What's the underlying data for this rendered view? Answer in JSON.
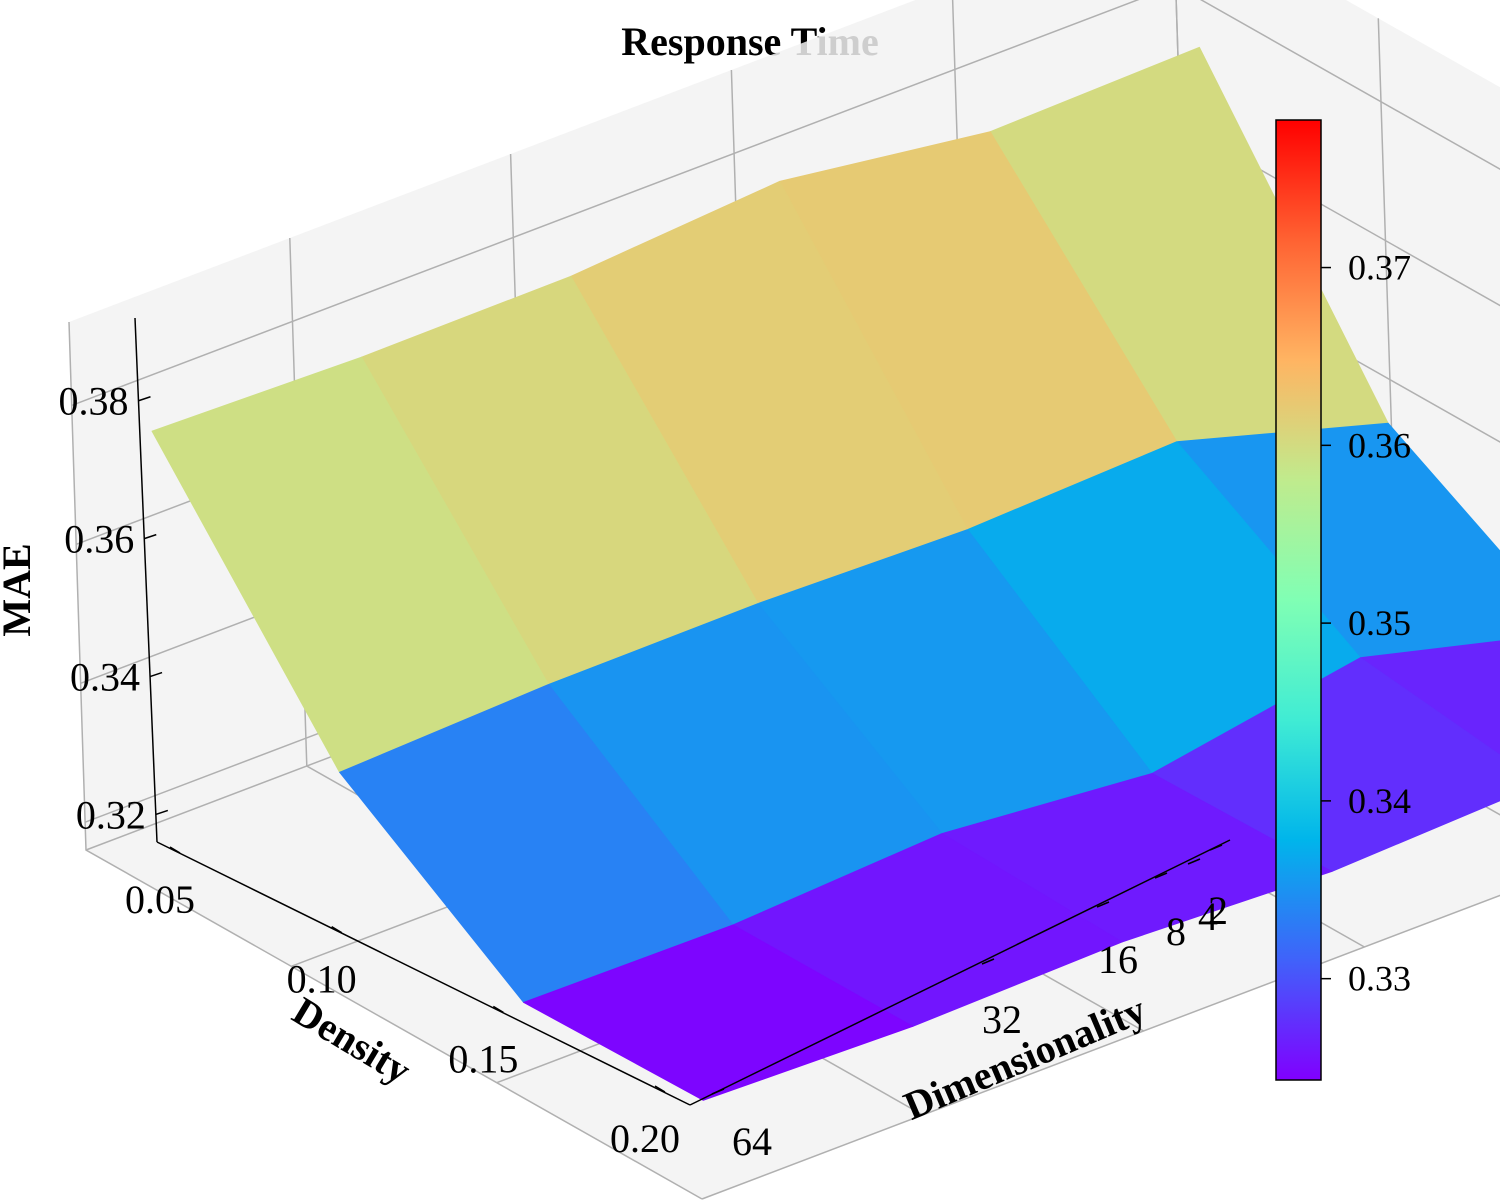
{
  "chart_data": {
    "type": "surface3d",
    "title": "Response Time",
    "xlabel": "Density",
    "ylabel": "Dimensionality",
    "zlabel": "MAE",
    "colormap": "rainbow",
    "density": [
      0.05,
      0.1,
      0.15,
      0.2
    ],
    "density_tick_labels": [
      "0.05",
      "0.10",
      "0.15",
      "0.20"
    ],
    "dimensionality": [
      2,
      4,
      8,
      16,
      32,
      64
    ],
    "dimensionality_tick_labels": [
      "2",
      "4",
      "8",
      "16",
      "32",
      "64"
    ],
    "mae": [
      [
        0.378,
        0.339,
        0.324,
        0.324
      ],
      [
        0.3765,
        0.347,
        0.331,
        0.328
      ],
      [
        0.38,
        0.345,
        0.325,
        0.326
      ],
      [
        0.377,
        0.345,
        0.327,
        0.3265
      ],
      [
        0.376,
        0.344,
        0.3245,
        0.325
      ],
      [
        0.376,
        0.342,
        0.324,
        0.325
      ]
    ],
    "mae_note": "rows follow dimensionality [2,4,8,16,32,64]; columns follow density [0.05,0.10,0.15,0.20]",
    "z_ticks": [
      0.32,
      0.34,
      0.36,
      0.38
    ],
    "z_tick_labels": [
      "0.32",
      "0.34",
      "0.36",
      "0.38"
    ],
    "zlim": [
      0.316,
      0.392
    ],
    "colorbar": {
      "range": [
        0.3243,
        0.3783
      ],
      "ticks": [
        0.33,
        0.34,
        0.35,
        0.36,
        0.37
      ],
      "tick_labels": [
        "0.33",
        "0.34",
        "0.35",
        "0.36",
        "0.37"
      ],
      "position": "right"
    },
    "grid": true
  }
}
